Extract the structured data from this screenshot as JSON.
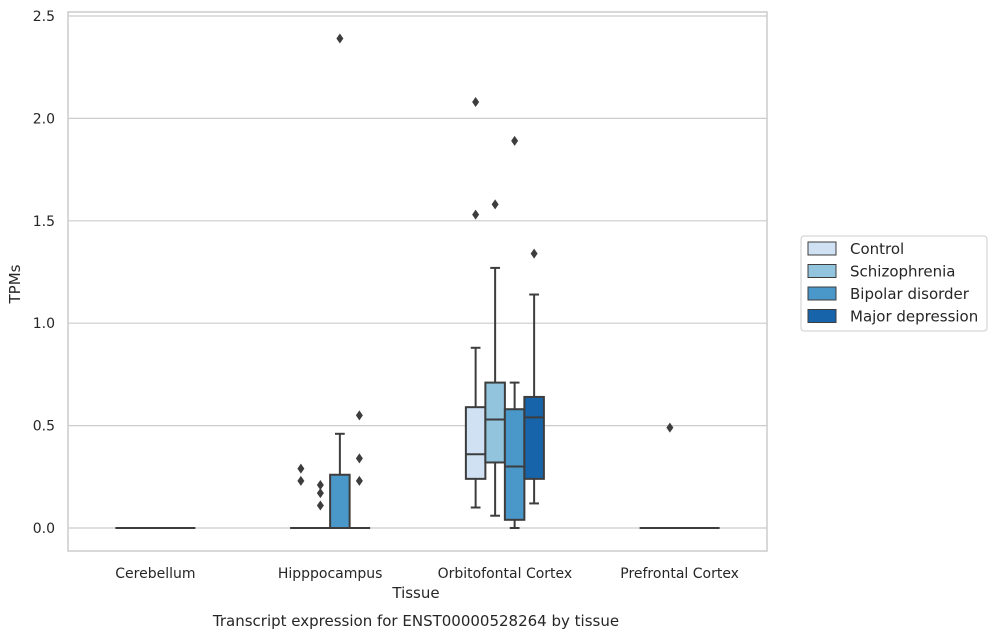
{
  "chart_data": {
    "type": "box",
    "xlabel": "Tissue",
    "ylabel": "TPMs",
    "caption": "Transcript expression for ENST00000528264 by tissue",
    "ylim": [
      -0.12,
      2.52
    ],
    "yticks": [
      0.0,
      0.5,
      1.0,
      1.5,
      2.0,
      2.5
    ],
    "ytick_labels": [
      "0.0",
      "0.5",
      "1.0",
      "1.5",
      "2.0",
      "2.5"
    ],
    "grid": "horizontal",
    "legend_position": "right",
    "categories": [
      "Cerebellum",
      "Hipppocampus",
      "Orbitofontal Cortex",
      "Prefrontal Cortex"
    ],
    "series": [
      {
        "name": "Control",
        "color": "#cfe1f2",
        "boxes": [
          {
            "category": "Cerebellum",
            "q1": 0,
            "median": 0,
            "q3": 0,
            "whislo": 0,
            "whishi": 0,
            "fliers": []
          },
          {
            "category": "Hipppocampus",
            "q1": 0,
            "median": 0,
            "q3": 0,
            "whislo": 0,
            "whishi": 0,
            "fliers": [
              0.29,
              0.23
            ]
          },
          {
            "category": "Orbitofontal Cortex",
            "q1": 0.24,
            "median": 0.36,
            "q3": 0.59,
            "whislo": 0.1,
            "whishi": 0.88,
            "fliers": [
              2.08,
              1.53
            ]
          },
          {
            "category": "Prefrontal Cortex",
            "q1": 0,
            "median": 0,
            "q3": 0,
            "whislo": 0,
            "whishi": 0,
            "fliers": []
          }
        ]
      },
      {
        "name": "Schizophrenia",
        "color": "#93c4de",
        "boxes": [
          {
            "category": "Cerebellum",
            "q1": 0,
            "median": 0,
            "q3": 0,
            "whislo": 0,
            "whishi": 0,
            "fliers": []
          },
          {
            "category": "Hipppocampus",
            "q1": 0,
            "median": 0,
            "q3": 0,
            "whislo": 0,
            "whishi": 0,
            "fliers": [
              0.21,
              0.17,
              0.11
            ]
          },
          {
            "category": "Orbitofontal Cortex",
            "q1": 0.32,
            "median": 0.53,
            "q3": 0.71,
            "whislo": 0.06,
            "whishi": 1.27,
            "fliers": [
              1.58
            ]
          },
          {
            "category": "Prefrontal Cortex",
            "q1": 0,
            "median": 0,
            "q3": 0,
            "whislo": 0,
            "whishi": 0,
            "fliers": [
              0.49
            ]
          }
        ]
      },
      {
        "name": "Bipolar disorder",
        "color": "#4a98c9",
        "boxes": [
          {
            "category": "Cerebellum",
            "q1": 0,
            "median": 0,
            "q3": 0,
            "whislo": 0,
            "whishi": 0,
            "fliers": []
          },
          {
            "category": "Hipppocampus",
            "q1": 0,
            "median": 0,
            "q3": 0.26,
            "whislo": 0,
            "whishi": 0.46,
            "fliers": [
              2.39
            ]
          },
          {
            "category": "Orbitofontal Cortex",
            "q1": 0.04,
            "median": 0.3,
            "q3": 0.58,
            "whislo": 0.0,
            "whishi": 0.71,
            "fliers": [
              1.89
            ]
          },
          {
            "category": "Prefrontal Cortex",
            "q1": 0,
            "median": 0,
            "q3": 0,
            "whislo": 0,
            "whishi": 0,
            "fliers": []
          }
        ]
      },
      {
        "name": "Major depression",
        "color": "#1764ab",
        "boxes": [
          {
            "category": "Cerebellum",
            "q1": 0,
            "median": 0,
            "q3": 0,
            "whislo": 0,
            "whishi": 0,
            "fliers": []
          },
          {
            "category": "Hipppocampus",
            "q1": 0,
            "median": 0,
            "q3": 0,
            "whislo": 0,
            "whishi": 0,
            "fliers": [
              0.55,
              0.34,
              0.23
            ]
          },
          {
            "category": "Orbitofontal Cortex",
            "q1": 0.24,
            "median": 0.54,
            "q3": 0.64,
            "whislo": 0.12,
            "whishi": 1.14,
            "fliers": [
              1.34
            ]
          },
          {
            "category": "Prefrontal Cortex",
            "q1": 0,
            "median": 0,
            "q3": 0,
            "whislo": 0,
            "whishi": 0,
            "fliers": []
          }
        ]
      }
    ]
  }
}
